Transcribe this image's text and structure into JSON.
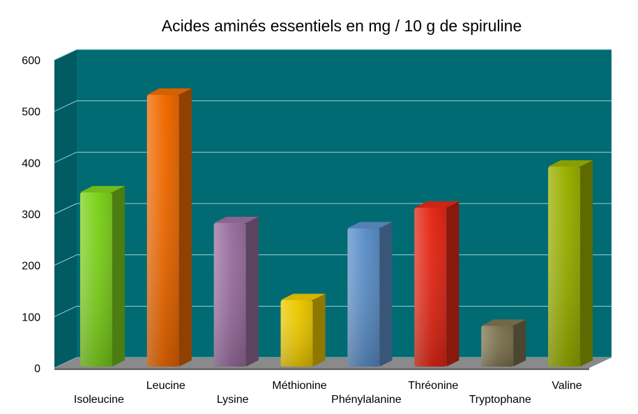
{
  "chart_data": {
    "type": "bar",
    "title": "Acides aminés essentiels en mg / 10 g de spiruline",
    "xlabel": "",
    "ylabel": "",
    "ylim": [
      0,
      600
    ],
    "yticks": [
      0,
      100,
      200,
      300,
      400,
      500,
      600
    ],
    "grid": true,
    "legend": "none",
    "plot_background": "#006b73",
    "categories": [
      "Isoleucine",
      "Leucine",
      "Lysine",
      "Méthionine",
      "Phénylalanine",
      "Thréonine",
      "Tryptophane",
      "Valine"
    ],
    "values": [
      345,
      535,
      285,
      135,
      275,
      315,
      85,
      395
    ],
    "colors": [
      "#7dd11c",
      "#f06a00",
      "#9a6f9f",
      "#ecc800",
      "#5c8fc8",
      "#e42816",
      "#7e7450",
      "#9ab000"
    ]
  }
}
